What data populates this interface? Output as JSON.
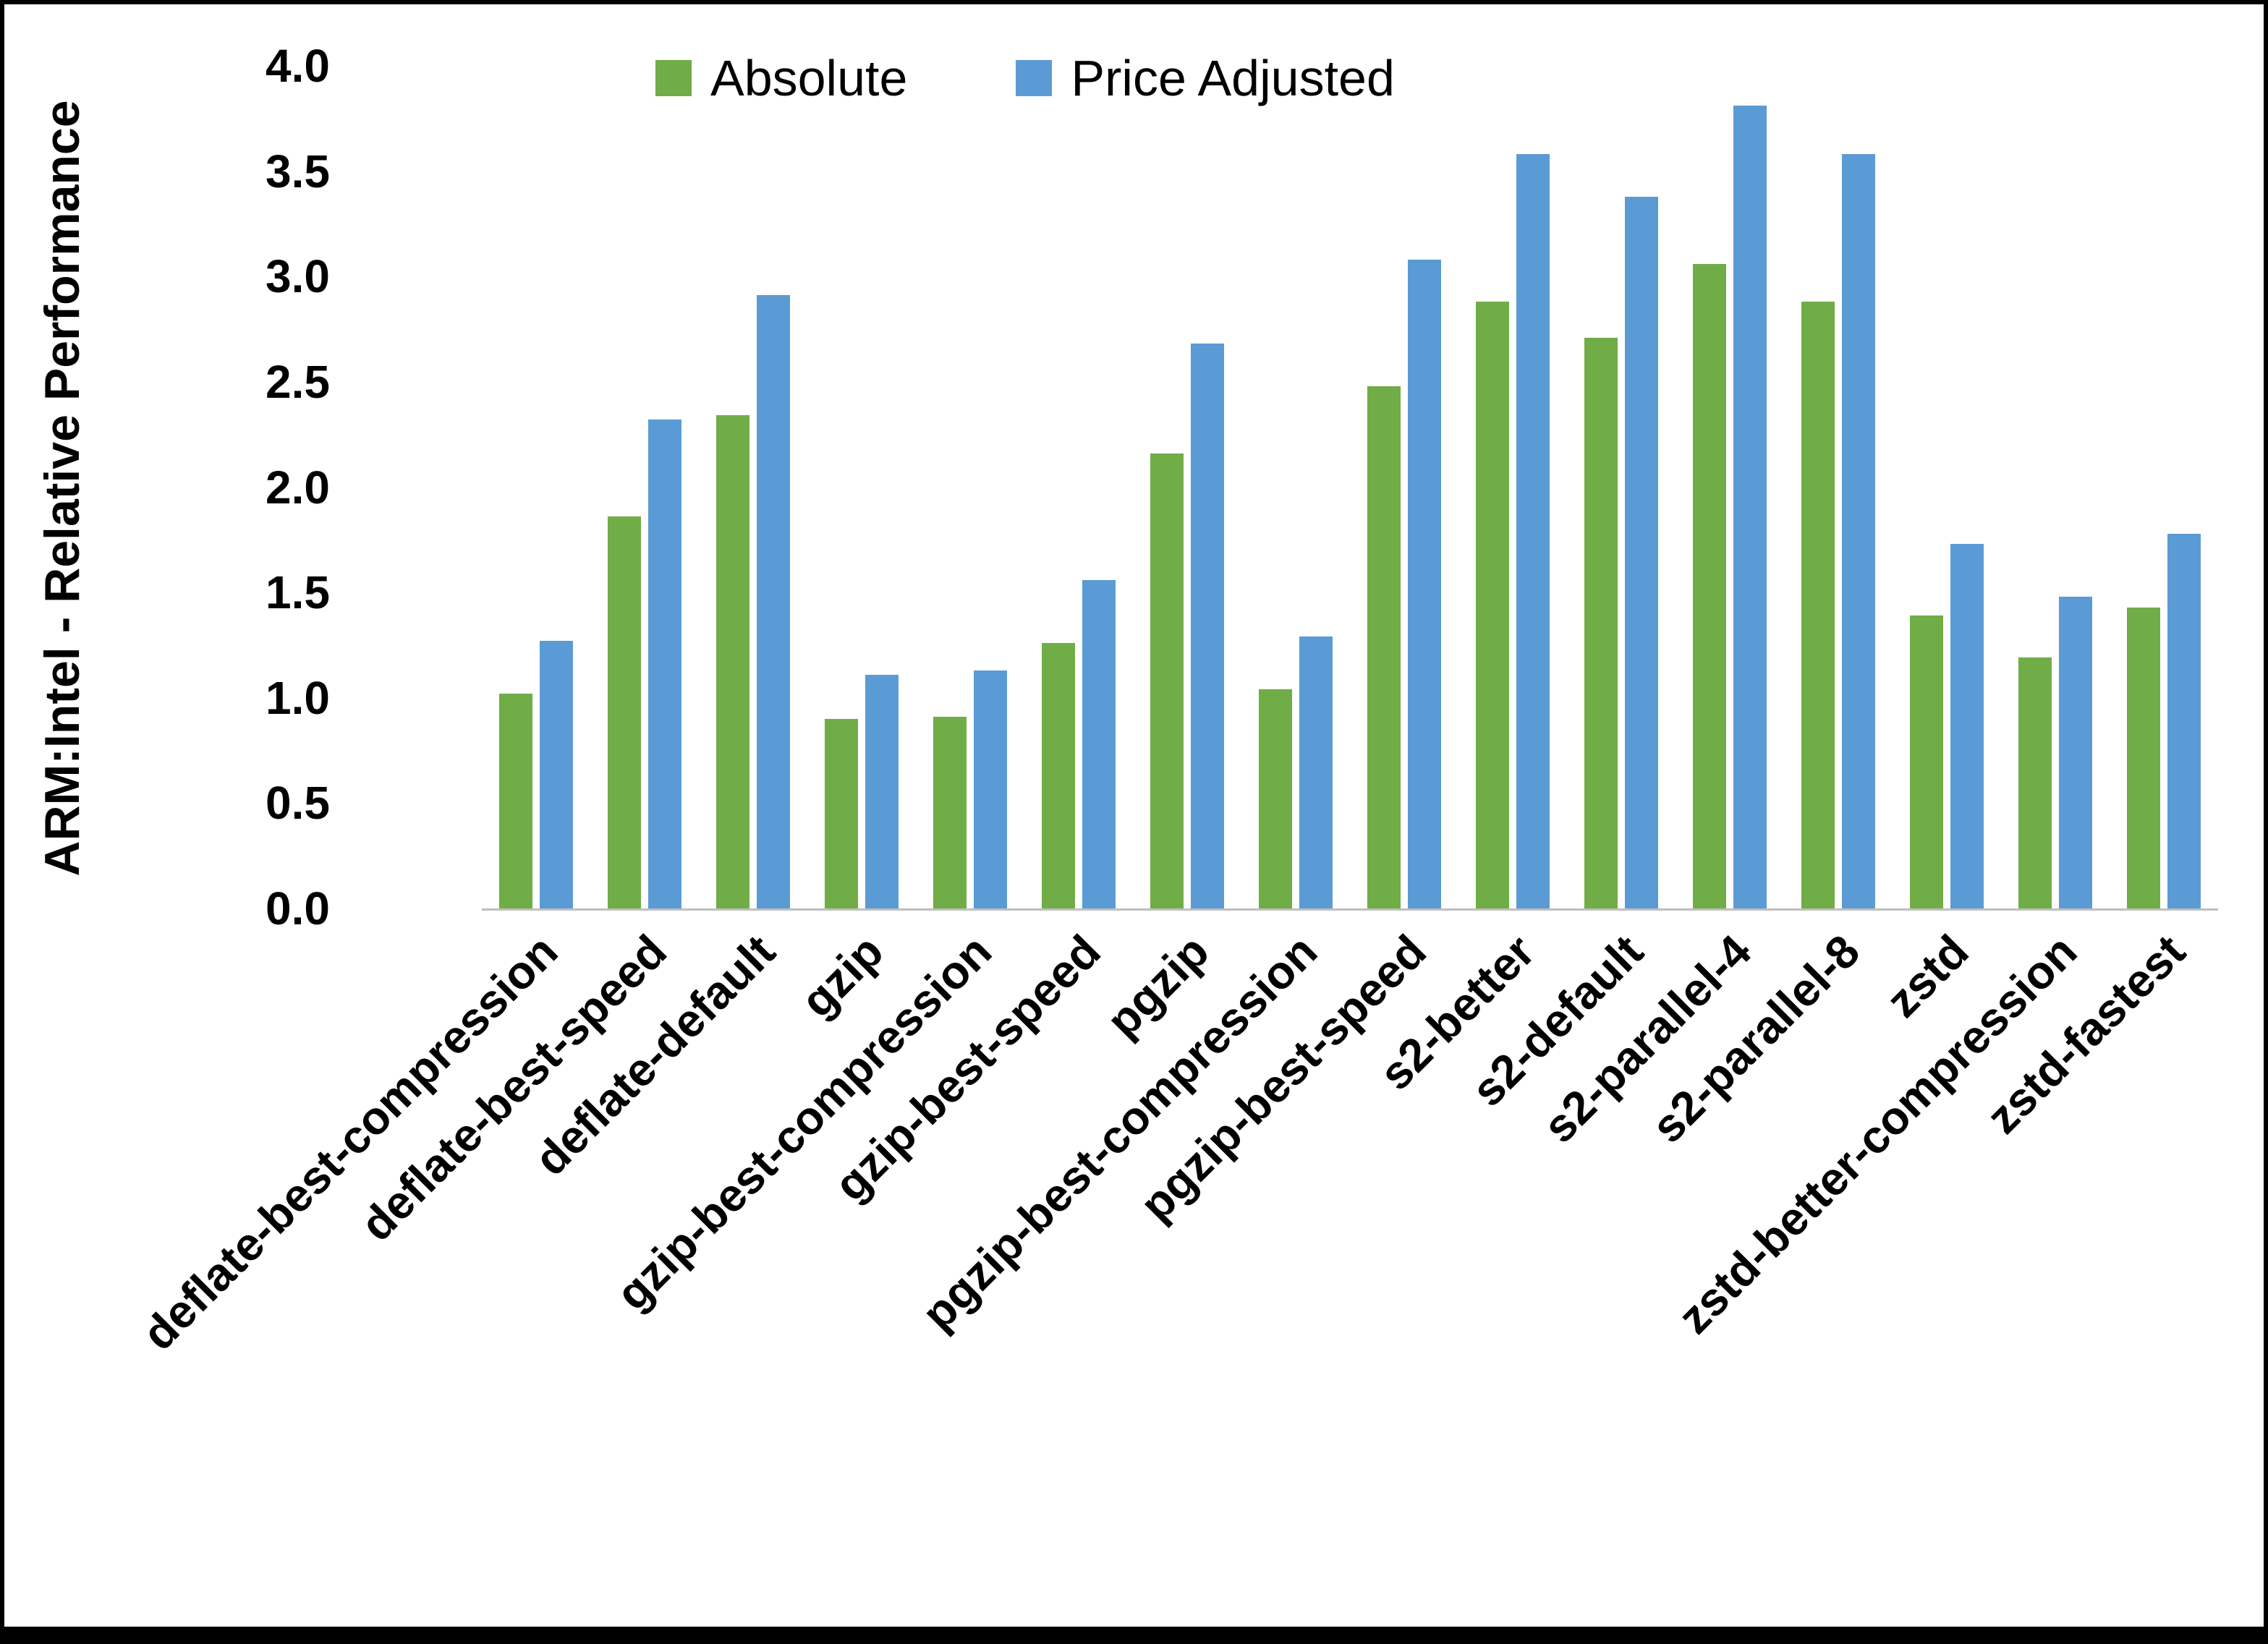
{
  "chart_data": {
    "type": "bar",
    "title": "",
    "xlabel": "",
    "ylabel": "ARM:Intel - Relative Performance",
    "ylim": [
      0,
      4.0
    ],
    "ytick_labels": [
      "0.0",
      "0.5",
      "1.0",
      "1.5",
      "2.0",
      "2.5",
      "3.0",
      "3.5",
      "4.0"
    ],
    "grid": false,
    "legend_position": "top",
    "categories": [
      "deflate-best-compression",
      "deflate-best-speed",
      "deflate-default",
      "gzip",
      "gzip-best-compression",
      "gzip-best-speed",
      "pgzip",
      "pgzip-best-compression",
      "pgzip-best-speed",
      "s2-better",
      "s2-default",
      "s2-parallel-4",
      "s2-parallel-8",
      "zstd",
      "zstd-better-compression",
      "zstd-fastest"
    ],
    "series": [
      {
        "name": "Absolute",
        "color": "#70AD47",
        "values": [
          1.02,
          1.86,
          2.34,
          0.9,
          0.91,
          1.26,
          2.16,
          1.04,
          2.48,
          2.88,
          2.71,
          3.06,
          2.88,
          1.39,
          1.19,
          1.43
        ]
      },
      {
        "name": "Price Adjusted",
        "color": "#5B9BD5",
        "values": [
          1.27,
          2.32,
          2.91,
          1.11,
          1.13,
          1.56,
          2.68,
          1.29,
          3.08,
          3.58,
          3.38,
          3.81,
          3.58,
          1.73,
          1.48,
          1.78
        ]
      }
    ]
  }
}
